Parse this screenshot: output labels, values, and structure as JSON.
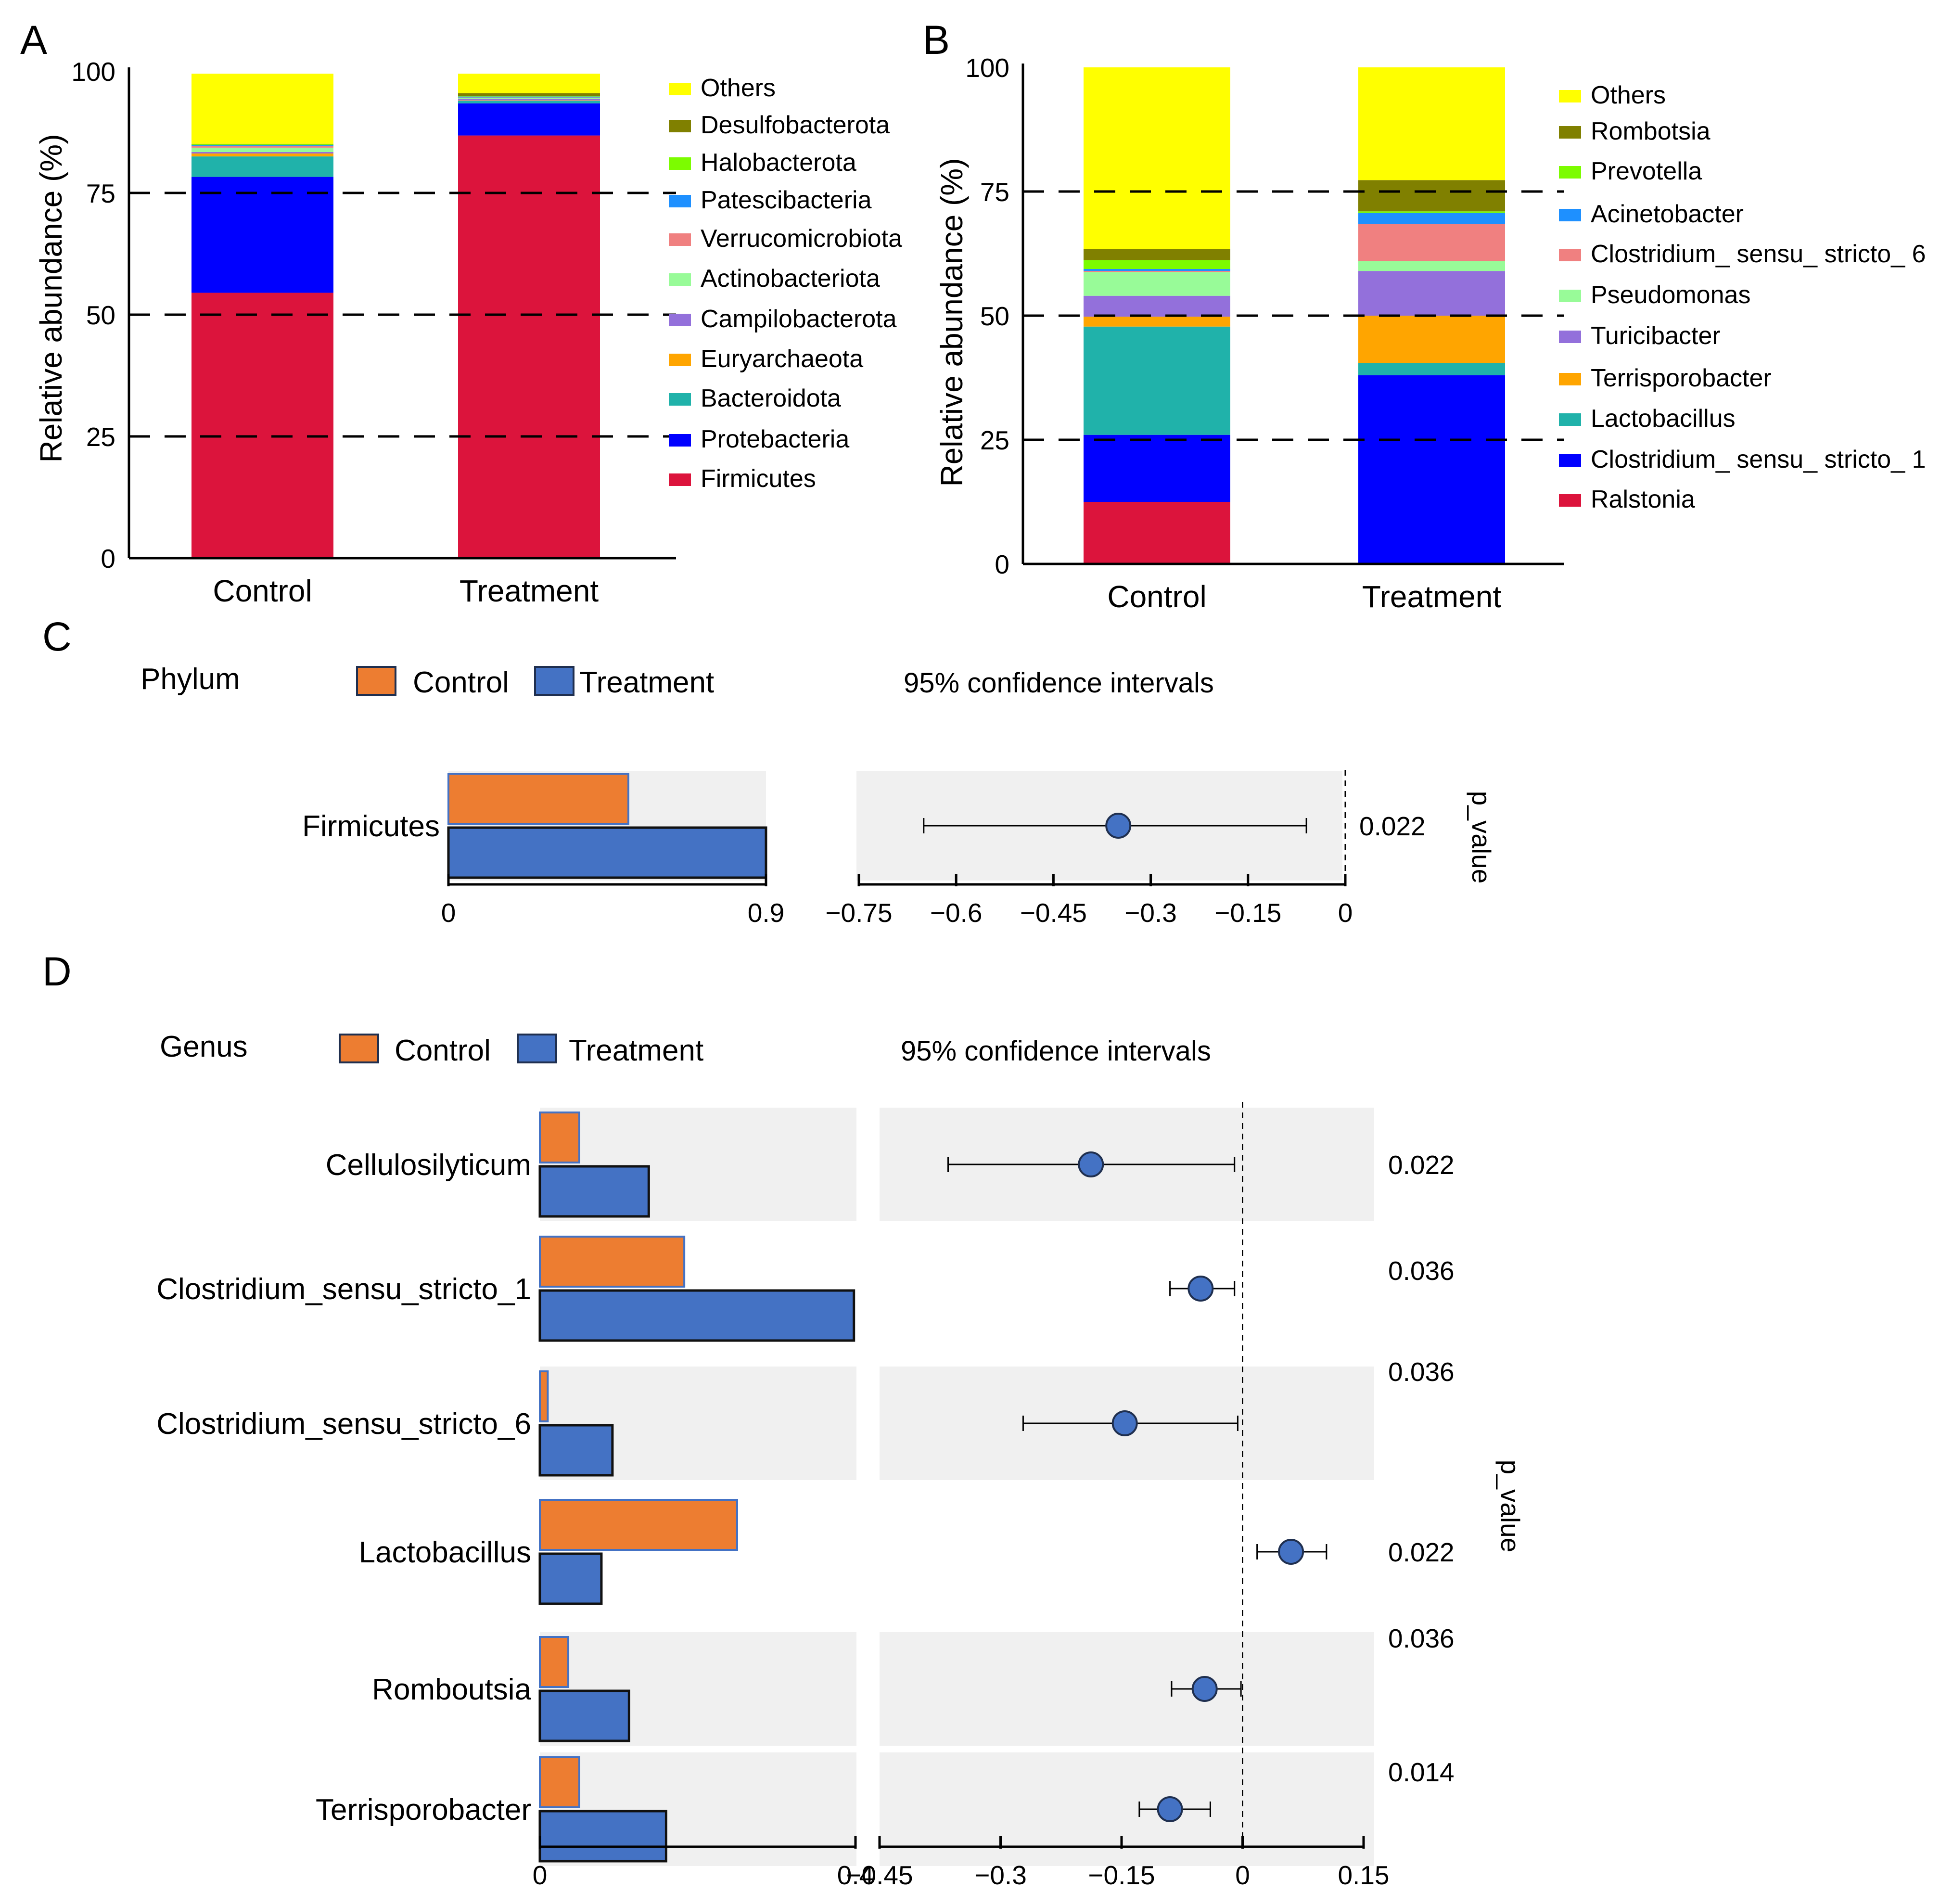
{
  "chart_data": [
    {
      "panel": "A",
      "type": "bar",
      "stacked": true,
      "ylabel": "Relative abundance (%)",
      "ylim": [
        0,
        100
      ],
      "yticks": [
        "0",
        "25",
        "50",
        "75",
        "100"
      ],
      "reference_lines": [
        25,
        50,
        75
      ],
      "categories": [
        "Control",
        "Treatment"
      ],
      "series": [
        {
          "name": "Firmicutes",
          "color": "#DC143C",
          "values": [
            54.5,
            86.8
          ]
        },
        {
          "name": "Protebacteria",
          "color": "#0000FF",
          "values": [
            23.8,
            6.6
          ]
        },
        {
          "name": "Bacteroidota",
          "color": "#20B2AA",
          "values": [
            4.2,
            0.5
          ]
        },
        {
          "name": "Euryarchaeota",
          "color": "#FFA500",
          "values": [
            0.6,
            0.1
          ]
        },
        {
          "name": "Campilobacterota",
          "color": "#9370DB",
          "values": [
            0.3,
            0.3
          ]
        },
        {
          "name": "Actinobacteriota",
          "color": "#98FB98",
          "values": [
            0.9,
            0.2
          ]
        },
        {
          "name": "Verrucomicrobiota",
          "color": "#F08080",
          "values": [
            0.3,
            0.1
          ]
        },
        {
          "name": "Patescibacteria",
          "color": "#1E90FF",
          "values": [
            0.2,
            0.2
          ]
        },
        {
          "name": "Halobacterota",
          "color": "#7CFC00",
          "values": [
            0.2,
            0.1
          ]
        },
        {
          "name": "Desulfobacterota",
          "color": "#808000",
          "values": [
            0.1,
            0.6
          ]
        },
        {
          "name": "Others",
          "color": "#FFFF00",
          "values": [
            14.4,
            4.0
          ]
        }
      ]
    },
    {
      "panel": "B",
      "type": "bar",
      "stacked": true,
      "ylabel": "Relative abundance (%)",
      "ylim": [
        0,
        100
      ],
      "yticks": [
        "0",
        "25",
        "50",
        "75",
        "100"
      ],
      "reference_lines": [
        25,
        50,
        75
      ],
      "categories": [
        "Control",
        "Treatment"
      ],
      "series": [
        {
          "name": "Ralstonia",
          "color": "#DC143C",
          "values": [
            12.5,
            0.0
          ]
        },
        {
          "name": "Clostridium_ sensu_ stricto_ 1",
          "color": "#0000FF",
          "values": [
            13.5,
            38.0
          ]
        },
        {
          "name": "Lactobacillus",
          "color": "#20B2AA",
          "values": [
            21.8,
            2.5
          ]
        },
        {
          "name": "Terrisporobacter",
          "color": "#FFA500",
          "values": [
            2.0,
            9.5
          ]
        },
        {
          "name": "Turicibacter",
          "color": "#9370DB",
          "values": [
            4.2,
            9.0
          ]
        },
        {
          "name": "Pseudomonas",
          "color": "#98FB98",
          "values": [
            4.8,
            2.0
          ]
        },
        {
          "name": "Clostridium_ sensu_ stricto_ 6",
          "color": "#F08080",
          "values": [
            0.2,
            7.5
          ]
        },
        {
          "name": "Acinetobacter",
          "color": "#1E90FF",
          "values": [
            0.4,
            2.2
          ]
        },
        {
          "name": "Prevotella",
          "color": "#7CFC00",
          "values": [
            1.8,
            0.3
          ]
        },
        {
          "name": "Rombotsia",
          "color": "#808000",
          "values": [
            2.2,
            6.3
          ]
        },
        {
          "name": "Others",
          "color": "#FFFF00",
          "values": [
            36.6,
            22.7
          ]
        }
      ]
    },
    {
      "panel": "C",
      "type": "bar",
      "header": "Phylum",
      "legend": [
        {
          "name": "Control",
          "color": "#ED7D31"
        },
        {
          "name": "Treatment",
          "color": "#4472C4"
        }
      ],
      "ci_title": "95% confidence intervals",
      "pvalue_label": "p_value",
      "bar_xlim": [
        0,
        0.9
      ],
      "bar_ticks": [
        "0",
        "0.9"
      ],
      "ci_xlim": [
        -0.75,
        0
      ],
      "ci_ticks": [
        "−0.75",
        "−0.6",
        "−0.45",
        "−0.3",
        "−0.15",
        "0"
      ],
      "rows": [
        {
          "label": "Firmicutes",
          "control": 0.51,
          "treatment": 0.9,
          "diff": -0.35,
          "ci": [
            -0.65,
            -0.06
          ],
          "p": "0.022"
        }
      ]
    },
    {
      "panel": "D",
      "type": "bar",
      "header": "Genus",
      "legend": [
        {
          "name": "Control",
          "color": "#ED7D31"
        },
        {
          "name": "Treatment",
          "color": "#4472C4"
        }
      ],
      "ci_title": "95% confidence intervals",
      "pvalue_label": "p_value",
      "bar_xlim": [
        0,
        0.4
      ],
      "bar_ticks": [
        "0",
        "0.4"
      ],
      "ci_xlim": [
        -0.45,
        0.15
      ],
      "ci_ticks": [
        "−0.45",
        "−0.3",
        "−0.15",
        "0",
        "0.15"
      ],
      "rows": [
        {
          "label": "Cellulosilyticum",
          "control": 0.05,
          "treatment": 0.138,
          "diff": -0.188,
          "ci": [
            -0.365,
            -0.01
          ],
          "p": "0.022"
        },
        {
          "label": "Clostridium_sensu_stricto_1",
          "control": 0.183,
          "treatment": 0.398,
          "diff": -0.052,
          "ci": [
            -0.09,
            -0.01
          ],
          "p": "0.036"
        },
        {
          "label": "Clostridium_sensu_stricto_6",
          "control": 0.01,
          "treatment": 0.092,
          "diff": -0.146,
          "ci": [
            -0.272,
            -0.006
          ],
          "p": "0.036"
        },
        {
          "label": "Lactobacillus",
          "control": 0.25,
          "treatment": 0.078,
          "diff": 0.06,
          "ci": [
            0.018,
            0.104
          ],
          "p": "0.022"
        },
        {
          "label": "Romboutsia",
          "control": 0.036,
          "treatment": 0.113,
          "diff": -0.047,
          "ci": [
            -0.088,
            -0.002
          ],
          "p": "0.036"
        },
        {
          "label": "Terrisporobacter",
          "control": 0.05,
          "treatment": 0.16,
          "diff": -0.09,
          "ci": [
            -0.128,
            -0.04
          ],
          "p": "0.014"
        }
      ]
    }
  ],
  "panel_letters": [
    "A",
    "B",
    "C",
    "D"
  ]
}
